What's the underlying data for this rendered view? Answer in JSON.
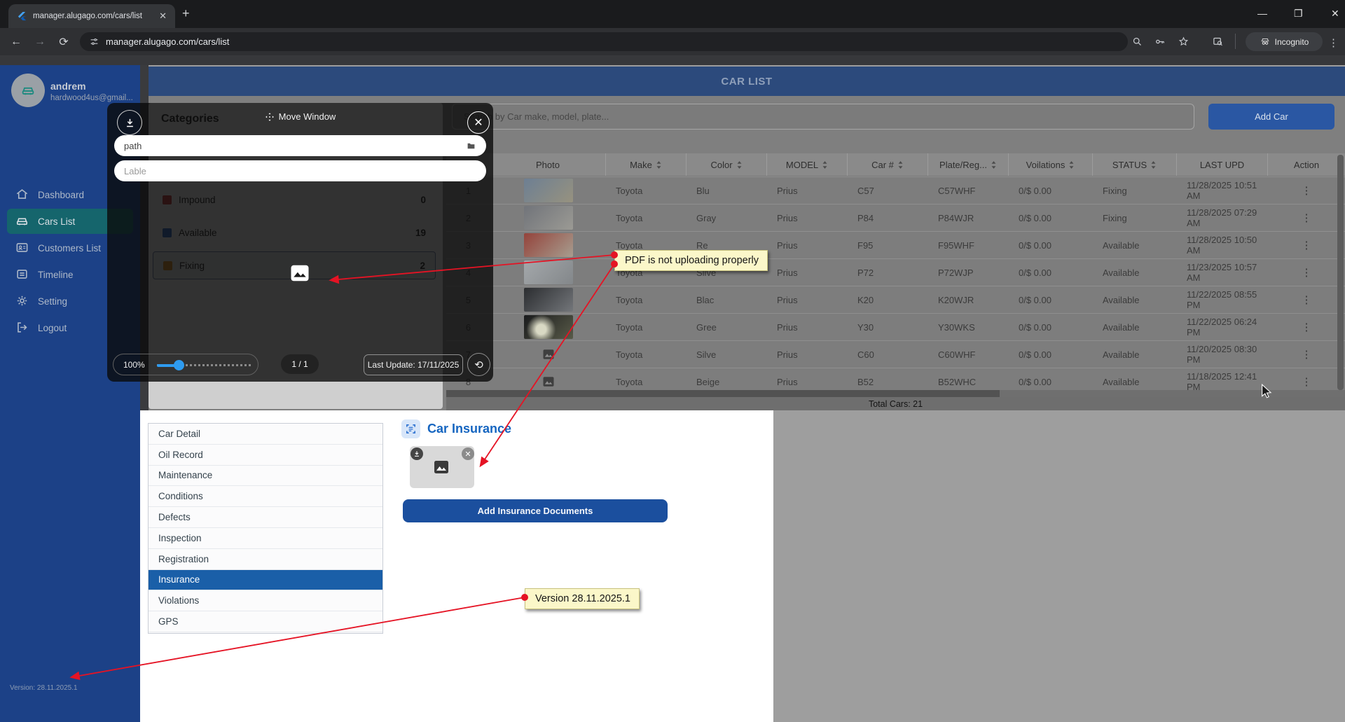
{
  "browser": {
    "tab_title": "manager.alugago.com/cars/list",
    "url": "manager.alugago.com/cars/list",
    "incognito_label": "Incognito"
  },
  "sidebar": {
    "user_name": "andrem",
    "user_email": "hardwood4us@gmail...",
    "items": [
      {
        "icon": "home",
        "label": "Dashboard",
        "selected": false
      },
      {
        "icon": "car",
        "label": "Cars List",
        "selected": true
      },
      {
        "icon": "customers",
        "label": "Customers List",
        "selected": false
      },
      {
        "icon": "timeline",
        "label": "Timeline",
        "selected": false
      },
      {
        "icon": "gear",
        "label": "Setting",
        "selected": false
      },
      {
        "icon": "logout",
        "label": "Logout",
        "selected": false
      }
    ],
    "version_text": "Version: 28.11.2025.1"
  },
  "page": {
    "title": "CAR LIST",
    "search_placeholder": "Search by Car make, model, plate...",
    "add_car_label": "Add Car",
    "total_label": "Total Cars: 21"
  },
  "categories": {
    "title": "Categories",
    "items": [
      {
        "label": "Impound",
        "count": "0",
        "color": "#a83232",
        "selected": false
      },
      {
        "label": "Available",
        "count": "19",
        "color": "#2a5caa",
        "selected": false
      },
      {
        "label": "Fixing",
        "count": "2",
        "color": "#b87a1e",
        "selected": true
      }
    ]
  },
  "table": {
    "headers": [
      {
        "label": "#",
        "sortable": true
      },
      {
        "label": "Photo",
        "sortable": false
      },
      {
        "label": "Make",
        "sortable": true
      },
      {
        "label": "Color",
        "sortable": true
      },
      {
        "label": "MODEL",
        "sortable": true
      },
      {
        "label": "Car #",
        "sortable": true
      },
      {
        "label": "Plate/Reg...",
        "sortable": true
      },
      {
        "label": "Voilations",
        "sortable": true
      },
      {
        "label": "STATUS",
        "sortable": true
      },
      {
        "label": "LAST UPD",
        "sortable": false
      },
      {
        "label": "Action",
        "sortable": false
      }
    ],
    "rows": [
      {
        "num": "1",
        "make": "Toyota",
        "color": "Blu",
        "model": "Prius",
        "car": "C57",
        "plate": "C57WHF",
        "violations": "0/$ 0.00",
        "status": "Fixing",
        "updated": "11/28/2025 10:51 AM",
        "photo": [
          "#6d7f93",
          "#97927f"
        ],
        "glow": false
      },
      {
        "num": "2",
        "make": "Toyota",
        "color": "Gray",
        "model": "Prius",
        "car": "P84",
        "plate": "P84WJR",
        "violations": "0/$ 0.00",
        "status": "Fixing",
        "updated": "11/28/2025 07:29 AM",
        "photo": [
          "#71747a",
          "#9b9a94"
        ],
        "glow": false
      },
      {
        "num": "3",
        "make": "Toyota",
        "color": "Re",
        "model": "Prius",
        "car": "F95",
        "plate": "F95WHF",
        "violations": "0/$ 0.00",
        "status": "Available",
        "updated": "11/28/2025 10:50 AM",
        "photo": [
          "#94433b",
          "#a79d8f"
        ],
        "glow": false
      },
      {
        "num": "4",
        "make": "Toyota",
        "color": "Silve",
        "model": "Prius",
        "car": "P72",
        "plate": "P72WJP",
        "violations": "0/$ 0.00",
        "status": "Available",
        "updated": "11/23/2025 10:57 AM",
        "photo": [
          "#a4a8ab",
          "#83878a"
        ],
        "glow": false
      },
      {
        "num": "5",
        "make": "Toyota",
        "color": "Blac",
        "model": "Prius",
        "car": "K20",
        "plate": "K20WJR",
        "violations": "0/$ 0.00",
        "status": "Available",
        "updated": "11/22/2025 08:55 PM",
        "photo": [
          "#2b2d30",
          "#73767a"
        ],
        "glow": false
      },
      {
        "num": "6",
        "make": "Toyota",
        "color": "Gree",
        "model": "Prius",
        "car": "Y30",
        "plate": "Y30WKS",
        "violations": "0/$ 0.00",
        "status": "Available",
        "updated": "11/22/2025 06:24 PM",
        "photo": [
          "#191a1c",
          "#585a48"
        ],
        "glow": true
      },
      {
        "num": "7",
        "make": "Toyota",
        "color": "Silve",
        "model": "Prius",
        "car": "C60",
        "plate": "C60WHF",
        "violations": "0/$ 0.00",
        "status": "Available",
        "updated": "11/20/2025 08:30 PM",
        "photo": null,
        "glow": false
      },
      {
        "num": "8",
        "make": "Toyota",
        "color": "Beige",
        "model": "Prius",
        "car": "B52",
        "plate": "B52WHC",
        "violations": "0/$ 0.00",
        "status": "Available",
        "updated": "11/18/2025 12:41 PM",
        "photo": null,
        "glow": false
      }
    ]
  },
  "modal": {
    "title": "Move Window",
    "path_value": "path",
    "label_placeholder": "Lable",
    "zoom_value": "100%",
    "page_indicator": "1 / 1",
    "last_update_label": "Last Update: 17/11/2025"
  },
  "detail": {
    "tabs": [
      "Car Detail",
      "Oil Record",
      "Maintenance",
      "Conditions",
      "Defects",
      "Inspection",
      "Registration",
      "Insurance",
      "Violations",
      "GPS"
    ],
    "selected_tab": "Insurance",
    "section_title": "Car Insurance",
    "add_button_label": "Add Insurance Documents"
  },
  "annotations": {
    "note1": "PDF is not uploading properly",
    "note2": "Version 28.11.2025.1"
  },
  "colors": {
    "accent_blue": "#1565c0",
    "sidebar_blue": "#1c4187",
    "selected_teal": "#15656c",
    "annotation_red": "#e51324",
    "note_yellow": "#fbf7c9"
  }
}
